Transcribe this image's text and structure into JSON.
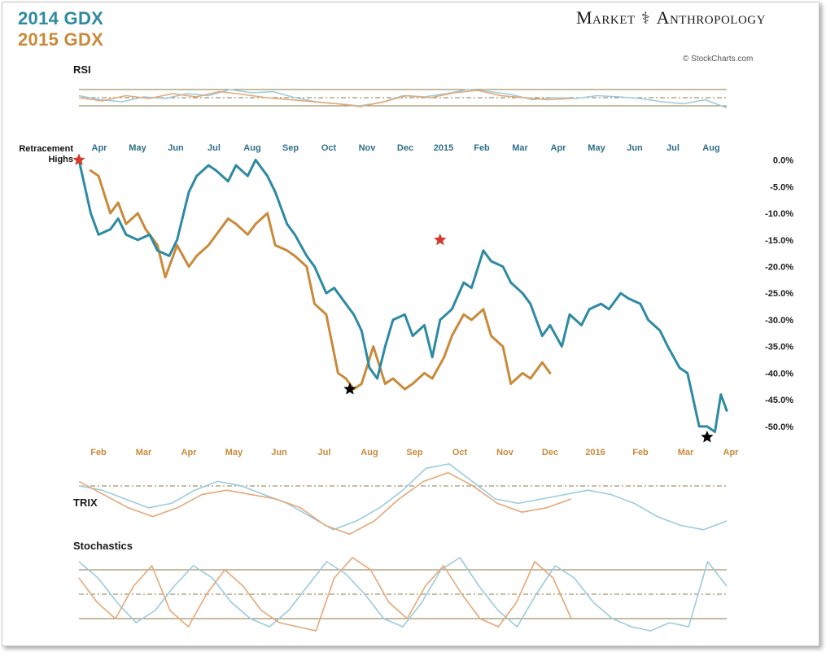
{
  "legend": {
    "items": [
      {
        "label": "2014 GDX",
        "color": "#2e8aa3"
      },
      {
        "label": "2015 GDX",
        "color": "#c98a3a"
      }
    ]
  },
  "brand": {
    "left": "Market",
    "right": "Anthropology",
    "logo_icon": "dna-helix-icon"
  },
  "credit": "© StockCharts.com",
  "annotation": {
    "line1": "Retracement",
    "line2": "Highs"
  },
  "panels": {
    "rsi": {
      "label": "RSI"
    },
    "trix": {
      "label": "TRIX"
    },
    "stochastics": {
      "label": "Stochastics"
    }
  },
  "colors": {
    "series_2014": "#2e8aa3",
    "series_2015": "#c98a3a",
    "indicator_2014": "#9ccbdc",
    "indicator_2015": "#e4a878",
    "marker_red": "#d23b2b",
    "marker_black": "#000000",
    "band_line": "#8d7a45"
  },
  "chart_data": {
    "type": "line",
    "title": "",
    "ylabel": "",
    "ylim": [
      -52,
      1
    ],
    "y_ticks": [
      0,
      -5,
      -10,
      -15,
      -20,
      -25,
      -30,
      -35,
      -40,
      -45,
      -50
    ],
    "y_tick_labels": [
      "0.0%",
      "-5.0%",
      "-10.0%",
      "-15.0%",
      "-20.0%",
      "-25.0%",
      "-30.0%",
      "-35.0%",
      "-40.0%",
      "-45.0%",
      "-50.0%"
    ],
    "x_axis_top": [
      "Apr",
      "May",
      "Jun",
      "Jul",
      "Aug",
      "Sep",
      "Oct",
      "Nov",
      "Dec",
      "2015",
      "Feb",
      "Mar",
      "Apr",
      "May",
      "Jun",
      "Jul",
      "Aug"
    ],
    "x_axis_bottom": [
      "Feb",
      "Mar",
      "Apr",
      "May",
      "Jun",
      "Jul",
      "Aug",
      "Sep",
      "Oct",
      "Nov",
      "Dec",
      "2016",
      "Feb",
      "Mar",
      "Apr"
    ],
    "x_range": [
      0,
      16.5
    ],
    "series": [
      {
        "name": "2014 GDX",
        "x": [
          0,
          0.3,
          0.5,
          0.8,
          1.0,
          1.2,
          1.5,
          1.8,
          2.0,
          2.3,
          2.5,
          2.8,
          3.0,
          3.3,
          3.5,
          3.8,
          4.0,
          4.3,
          4.5,
          4.8,
          5.0,
          5.3,
          5.5,
          5.8,
          6.0,
          6.3,
          6.5,
          6.8,
          7.0,
          7.2,
          7.4,
          7.6,
          7.8,
          8.0,
          8.3,
          8.5,
          8.8,
          9.0,
          9.2,
          9.5,
          9.8,
          10.0,
          10.3,
          10.5,
          10.8,
          11.0,
          11.3,
          11.5,
          11.8,
          12.0,
          12.3,
          12.5,
          12.8,
          13.0,
          13.3,
          13.5,
          13.8,
          14.0,
          14.3,
          14.5,
          14.8,
          15.0,
          15.3,
          15.5,
          15.8,
          16.0,
          16.2,
          16.35,
          16.5
        ],
        "values": [
          0,
          -10,
          -14,
          -13,
          -11,
          -14,
          -15,
          -14,
          -17,
          -18,
          -15,
          -6,
          -3,
          -1,
          -2,
          -4,
          -1,
          -3,
          0,
          -3,
          -6,
          -12,
          -14,
          -18,
          -20,
          -25,
          -24,
          -27,
          -29,
          -32,
          -39,
          -41,
          -35,
          -30,
          -29,
          -33,
          -31,
          -37,
          -30,
          -28,
          -23,
          -24,
          -17,
          -19,
          -20,
          -23,
          -25,
          -27,
          -33,
          -31,
          -35,
          -29,
          -31,
          -28,
          -27,
          -28,
          -25,
          -26,
          -27,
          -30,
          -32,
          -35,
          -39,
          -40,
          -50,
          -50,
          -51,
          -44,
          -47
        ]
      },
      {
        "name": "2015 GDX",
        "x": [
          0.3,
          0.5,
          0.8,
          1.0,
          1.2,
          1.5,
          1.7,
          2.0,
          2.2,
          2.5,
          2.8,
          3.0,
          3.3,
          3.5,
          3.8,
          4.0,
          4.3,
          4.5,
          4.8,
          5.0,
          5.3,
          5.5,
          5.8,
          6.0,
          6.3,
          6.6,
          6.8,
          7.0,
          7.2,
          7.5,
          7.8,
          8.0,
          8.3,
          8.5,
          8.8,
          9.0,
          9.3,
          9.5,
          9.8,
          10.0,
          10.3,
          10.5,
          10.8,
          11.0,
          11.3,
          11.5,
          11.8,
          12.0
        ],
        "values": [
          -2,
          -3,
          -10,
          -8,
          -12,
          -10,
          -13,
          -16,
          -22,
          -16,
          -20,
          -18,
          -16,
          -14,
          -11,
          -12,
          -14,
          -12,
          -10,
          -16,
          -17,
          -18,
          -20,
          -27,
          -29,
          -40,
          -41,
          -43,
          -42,
          -35,
          -42,
          -41,
          -43,
          -42,
          -40,
          -41,
          -37,
          -33,
          -29,
          -30,
          -28,
          -33,
          -35,
          -42,
          -40,
          -41,
          -38,
          -40
        ]
      }
    ],
    "markers": [
      {
        "shape": "star",
        "color": "red",
        "x": 0,
        "y": 0
      },
      {
        "shape": "star",
        "color": "red",
        "x": 9.2,
        "y": -15
      },
      {
        "shape": "star",
        "color": "black",
        "x": 6.9,
        "y": -43
      },
      {
        "shape": "star",
        "color": "black",
        "x": 16.0,
        "y": -52
      }
    ],
    "indicators": {
      "rsi": {
        "range": [
          0,
          100
        ],
        "levels": [
          70,
          50,
          30
        ],
        "series": [
          {
            "name": "2014 GDX",
            "values": [
              55,
              45,
              40,
              52,
              48,
              60,
              55,
              70,
              62,
              65,
              50,
              40,
              35,
              30,
              38,
              55,
              52,
              60,
              70,
              65,
              58,
              45,
              50,
              48,
              55,
              52,
              48,
              40,
              35,
              45,
              25
            ]
          },
          {
            "name": "2015 GDX",
            "values": [
              50,
              42,
              55,
              48,
              60,
              52,
              65,
              58,
              50,
              45,
              40,
              35,
              28,
              40,
              55,
              50,
              62,
              68,
              55,
              50,
              45,
              48
            ]
          }
        ]
      },
      "trix": {
        "series": [
          {
            "name": "2014 GDX",
            "values": [
              0.4,
              0.3,
              0.1,
              -0.1,
              0.0,
              0.3,
              0.5,
              0.4,
              0.2,
              0.0,
              -0.3,
              -0.6,
              -0.4,
              -0.1,
              0.3,
              0.8,
              0.9,
              0.5,
              0.1,
              0.0,
              0.1,
              0.2,
              0.3,
              0.2,
              0.0,
              -0.3,
              -0.5,
              -0.6,
              -0.4
            ]
          },
          {
            "name": "2015 GDX",
            "values": [
              0.5,
              0.2,
              -0.1,
              -0.3,
              -0.1,
              0.2,
              0.3,
              0.2,
              0.1,
              -0.1,
              -0.5,
              -0.7,
              -0.4,
              0.1,
              0.5,
              0.7,
              0.4,
              0.0,
              -0.2,
              -0.1,
              0.1
            ]
          }
        ]
      },
      "stochastics": {
        "range": [
          0,
          100
        ],
        "levels": [
          80,
          50,
          20
        ],
        "series": [
          {
            "name": "2014 GDX",
            "values": [
              90,
              70,
              40,
              15,
              30,
              60,
              85,
              70,
              40,
              20,
              10,
              30,
              60,
              90,
              75,
              50,
              20,
              10,
              40,
              80,
              95,
              60,
              30,
              10,
              50,
              85,
              70,
              40,
              20,
              10,
              5,
              15,
              10,
              90,
              60
            ]
          },
          {
            "name": "2015 GDX",
            "values": [
              70,
              40,
              20,
              60,
              85,
              30,
              10,
              50,
              80,
              60,
              30,
              15,
              10,
              5,
              70,
              95,
              80,
              40,
              20,
              60,
              85,
              50,
              20,
              10,
              40,
              90,
              70,
              20
            ]
          }
        ]
      }
    }
  }
}
